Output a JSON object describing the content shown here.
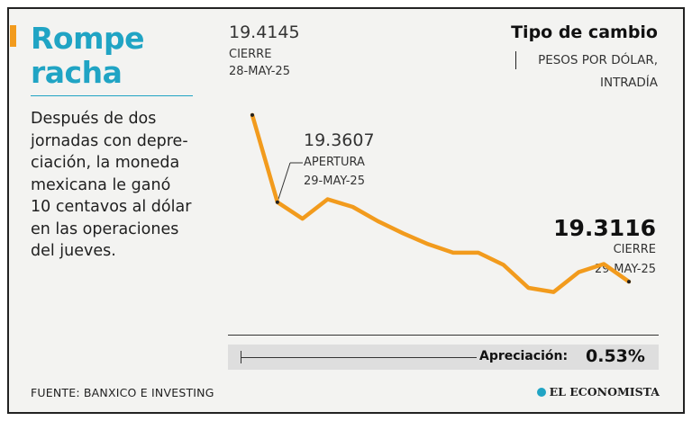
{
  "headline": "Rompe racha",
  "body_text": "Después de dos\njornadas con depre-\nciación, la moneda\nmexicana le ganó\n10 centavos al dólar\nen las operaciones\ndel jueves.",
  "source": "FUENTE: BANXICO E INVESTING",
  "chart_title": "Tipo de cambio",
  "chart_subtitle": "PESOS POR DÓLAR,\nINTRADÍA",
  "annotations": {
    "start": {
      "value": "19.4145",
      "label1": "CIERRE",
      "label2": "28-MAY-25"
    },
    "open": {
      "value": "19.3607",
      "label1": "APERTURA",
      "label2": "29-MAY-25"
    },
    "close": {
      "value": "19.3116",
      "label1": "CIERRE",
      "label2": "29-MAY-25"
    }
  },
  "appreciation_label": "Apreciación:",
  "appreciation_value": "0.53%",
  "logo": "EL ECONOMISTA",
  "colors": {
    "accent": "#f29b1d",
    "headline": "#20a4c4"
  },
  "chart_data": {
    "type": "line",
    "title": "Tipo de cambio",
    "ylabel": "PESOS POR DÓLAR, INTRADÍA",
    "ylim": [
      19.28,
      19.43
    ],
    "series": [
      {
        "values": [
          19.4145,
          19.3607,
          19.3505,
          19.3625,
          19.3578,
          19.349,
          19.3415,
          19.3348,
          19.3295,
          19.3295,
          19.322,
          19.3078,
          19.3052,
          19.3175,
          19.3225,
          19.3116
        ]
      }
    ]
  }
}
